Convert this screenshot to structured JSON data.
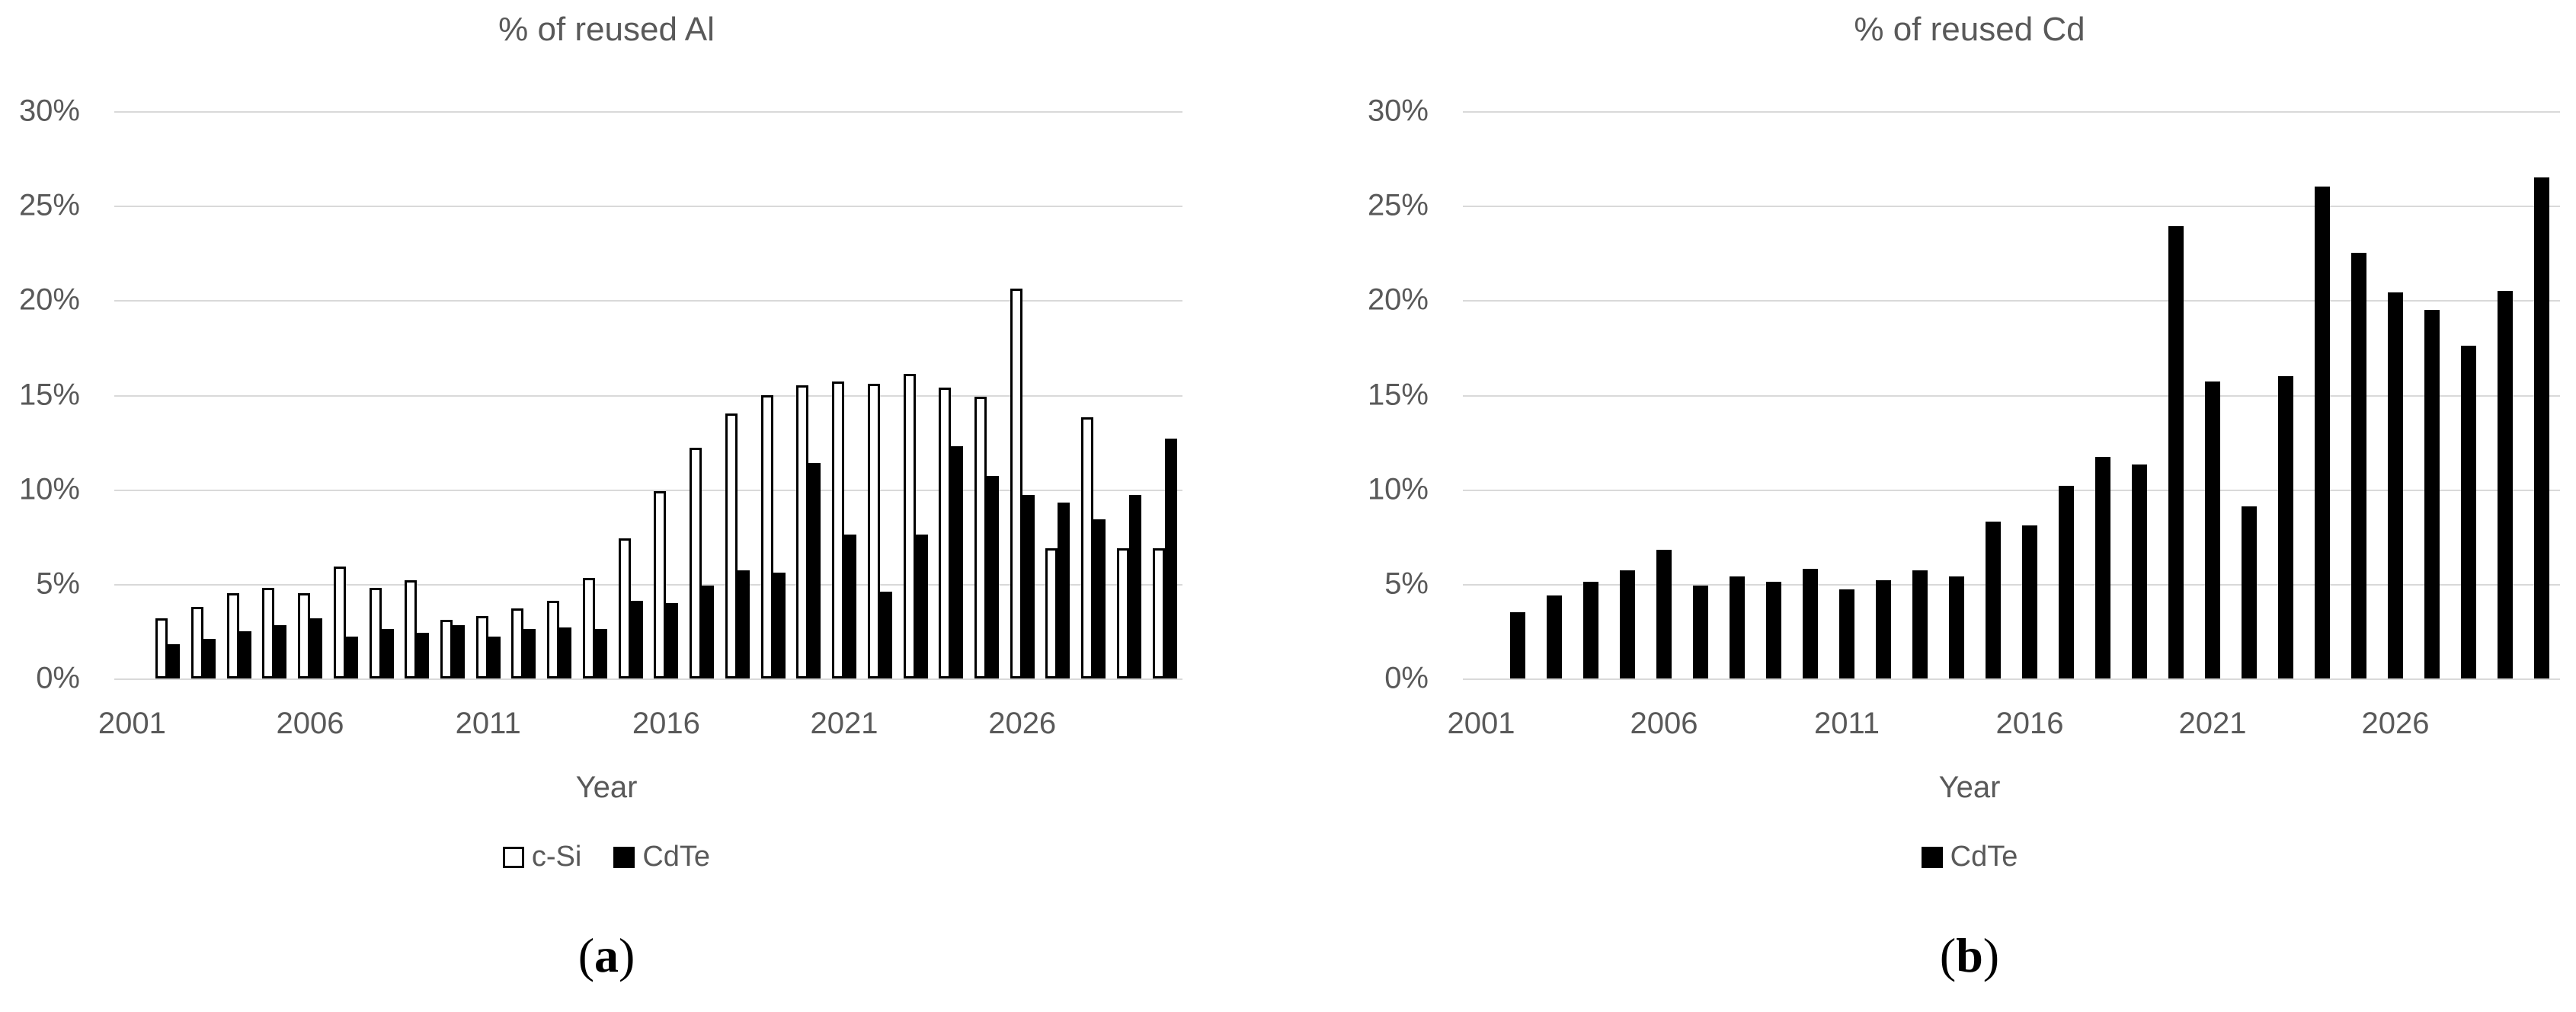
{
  "figure": {
    "background": "#ffffff",
    "text_color": "#595959",
    "gridline_color": "#d9d9d9",
    "bar_color": "#000000",
    "captions": [
      {
        "open": "(",
        "letter": "a",
        "close": ")"
      },
      {
        "open": "(",
        "letter": "b",
        "close": ")"
      }
    ]
  },
  "chart_data": [
    {
      "type": "bar",
      "title": "% of reused Al",
      "xlabel": "Year",
      "ylabel": "",
      "ylim": [
        0,
        30
      ],
      "grid": true,
      "legend_position": "bottom",
      "y_tick_labels": [
        "0%",
        "5%",
        "10%",
        "15%",
        "20%",
        "25%",
        "30%"
      ],
      "x_tick_labels": [
        "2001",
        "2006",
        "2011",
        "2016",
        "2021",
        "2026"
      ],
      "x_tick_step": 5,
      "categories": [
        2001,
        2002,
        2003,
        2004,
        2005,
        2006,
        2007,
        2008,
        2009,
        2010,
        2011,
        2012,
        2013,
        2014,
        2015,
        2016,
        2017,
        2018,
        2019,
        2020,
        2021,
        2022,
        2023,
        2024,
        2025,
        2026,
        2027,
        2028,
        2029,
        2030
      ],
      "series": [
        {
          "name": "c-Si",
          "fill": "#ffffff",
          "stroke": "#000000",
          "values": [
            0,
            3.2,
            3.8,
            4.5,
            4.8,
            4.5,
            5.9,
            4.8,
            5.2,
            3.1,
            3.3,
            3.7,
            4.1,
            5.3,
            7.4,
            9.9,
            12.2,
            14.0,
            15.0,
            15.5,
            15.7,
            15.6,
            16.1,
            15.4,
            14.9,
            20.6,
            6.9,
            13.8,
            6.9,
            6.9
          ]
        },
        {
          "name": "CdTe",
          "fill": "#000000",
          "stroke": "#000000",
          "values": [
            0,
            1.8,
            2.1,
            2.5,
            2.8,
            3.2,
            2.2,
            2.6,
            2.4,
            2.8,
            2.2,
            2.6,
            2.7,
            2.6,
            4.1,
            4.0,
            4.9,
            5.7,
            5.6,
            11.4,
            7.6,
            4.6,
            7.6,
            12.3,
            10.7,
            9.7,
            9.3,
            8.4,
            9.7,
            12.7
          ]
        }
      ]
    },
    {
      "type": "bar",
      "title": "% of reused Cd",
      "xlabel": "Year",
      "ylabel": "",
      "ylim": [
        0,
        30
      ],
      "grid": true,
      "legend_position": "bottom",
      "y_tick_labels": [
        "0%",
        "5%",
        "10%",
        "15%",
        "20%",
        "25%",
        "30%"
      ],
      "x_tick_labels": [
        "2001",
        "2006",
        "2011",
        "2016",
        "2021",
        "2026"
      ],
      "x_tick_step": 5,
      "categories": [
        2001,
        2002,
        2003,
        2004,
        2005,
        2006,
        2007,
        2008,
        2009,
        2010,
        2011,
        2012,
        2013,
        2014,
        2015,
        2016,
        2017,
        2018,
        2019,
        2020,
        2021,
        2022,
        2023,
        2024,
        2025,
        2026,
        2027,
        2028,
        2029,
        2030
      ],
      "series": [
        {
          "name": "CdTe",
          "fill": "#000000",
          "stroke": "#000000",
          "values": [
            0,
            3.5,
            4.4,
            5.1,
            5.7,
            6.8,
            4.9,
            5.4,
            5.1,
            5.8,
            4.7,
            5.2,
            5.7,
            5.4,
            8.3,
            8.1,
            10.2,
            11.7,
            11.3,
            23.9,
            15.7,
            9.1,
            16.0,
            26.0,
            22.5,
            20.4,
            19.5,
            17.6,
            20.5,
            26.5
          ]
        }
      ]
    }
  ]
}
